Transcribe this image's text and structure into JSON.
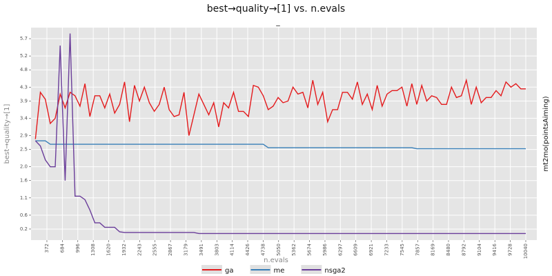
{
  "chart_data": {
    "type": "line",
    "title": "best→quality→[1] vs. n.evals",
    "subtitle": "_",
    "xlabel": "n.evals",
    "ylabel": "best→quality→[1]",
    "facet_label": "mt2mo(pointsAiming)",
    "grid": true,
    "legend": "bottom",
    "xlim": [
      52,
      10263
    ],
    "ylim": [
      -0.12,
      6.02
    ],
    "xticks": [
      372,
      684,
      996,
      1308,
      1620,
      1932,
      2243,
      2555,
      2867,
      3179,
      3491,
      3803,
      4114,
      4426,
      4738,
      5050,
      5362,
      5674,
      5986,
      6297,
      6609,
      6921,
      7233,
      7545,
      7857,
      8169,
      8480,
      8792,
      9104,
      9416,
      9728,
      10040
    ],
    "yticks": [
      0.2,
      0.6,
      1.1,
      1.6,
      {
        "value": 2,
        "label": "2.0"
      },
      2.5,
      2.9,
      3.4,
      3.9,
      4.3,
      4.8,
      5.2,
      5.7
    ],
    "x": [
      140,
      240,
      340,
      440,
      540,
      640,
      740,
      840,
      940,
      1040,
      1140,
      1240,
      1340,
      1440,
      1540,
      1640,
      1740,
      1840,
      1940,
      2040,
      2140,
      2240,
      2340,
      2440,
      2540,
      2640,
      2740,
      2840,
      2940,
      3040,
      3140,
      3240,
      3340,
      3440,
      3540,
      3640,
      3740,
      3840,
      3940,
      4040,
      4140,
      4240,
      4340,
      4440,
      4540,
      4640,
      4740,
      4840,
      4940,
      5040,
      5140,
      5240,
      5340,
      5440,
      5540,
      5640,
      5740,
      5840,
      5940,
      6040,
      6140,
      6240,
      6340,
      6440,
      6540,
      6640,
      6740,
      6840,
      6940,
      7040,
      7140,
      7240,
      7340,
      7440,
      7540,
      7640,
      7740,
      7840,
      7940,
      8040,
      8140,
      8240,
      8340,
      8440,
      8540,
      8640,
      8740,
      8840,
      8940,
      9040,
      9140,
      9240,
      9340,
      9440,
      9540,
      9640,
      9740,
      9840,
      9940,
      10040
    ],
    "series": [
      {
        "name": "ga",
        "color": "#e41a1c",
        "values": [
          2.8,
          4.15,
          3.95,
          3.25,
          3.4,
          4.1,
          3.7,
          4.15,
          4.05,
          3.75,
          4.4,
          3.45,
          4.05,
          4.05,
          3.7,
          4.1,
          3.55,
          3.8,
          4.45,
          3.3,
          4.35,
          3.9,
          4.3,
          3.85,
          3.6,
          3.8,
          4.3,
          3.65,
          3.45,
          3.5,
          4.15,
          2.9,
          3.5,
          4.1,
          3.8,
          3.5,
          3.85,
          3.15,
          3.85,
          3.7,
          4.15,
          3.6,
          3.6,
          3.45,
          4.35,
          4.3,
          4.05,
          3.65,
          3.75,
          4.0,
          3.85,
          3.9,
          4.3,
          4.1,
          4.15,
          3.7,
          4.5,
          3.8,
          4.15,
          3.3,
          3.65,
          3.65,
          4.15,
          4.15,
          3.95,
          4.45,
          3.8,
          4.1,
          3.65,
          4.35,
          3.75,
          4.1,
          4.2,
          4.2,
          4.3,
          3.75,
          4.4,
          3.8,
          4.35,
          3.9,
          4.05,
          4.0,
          3.8,
          3.8,
          4.3,
          4.0,
          4.05,
          4.5,
          3.8,
          4.3,
          3.85,
          4.0,
          4.0,
          4.2,
          4.05,
          4.45,
          4.3,
          4.4,
          4.25,
          4.25
        ]
      },
      {
        "name": "me",
        "color": "#377eb8",
        "values": [
          2.75,
          2.75,
          2.75,
          2.65,
          2.65,
          2.65,
          2.65,
          2.65,
          2.65,
          2.65,
          2.65,
          2.65,
          2.65,
          2.65,
          2.65,
          2.65,
          2.65,
          2.65,
          2.65,
          2.65,
          2.65,
          2.65,
          2.65,
          2.65,
          2.65,
          2.65,
          2.65,
          2.65,
          2.65,
          2.65,
          2.65,
          2.65,
          2.65,
          2.65,
          2.65,
          2.65,
          2.65,
          2.65,
          2.65,
          2.65,
          2.65,
          2.65,
          2.65,
          2.65,
          2.65,
          2.65,
          2.65,
          2.55,
          2.55,
          2.55,
          2.55,
          2.55,
          2.55,
          2.55,
          2.55,
          2.55,
          2.55,
          2.55,
          2.55,
          2.55,
          2.55,
          2.55,
          2.55,
          2.55,
          2.55,
          2.55,
          2.55,
          2.55,
          2.55,
          2.55,
          2.55,
          2.55,
          2.55,
          2.55,
          2.55,
          2.55,
          2.55,
          2.52,
          2.52,
          2.52,
          2.52,
          2.52,
          2.52,
          2.52,
          2.52,
          2.52,
          2.52,
          2.52,
          2.52,
          2.52,
          2.52,
          2.52,
          2.52,
          2.52,
          2.52,
          2.52,
          2.52,
          2.52,
          2.52,
          2.52
        ]
      },
      {
        "name": "nsga2",
        "color": "#6a3d9a",
        "values": [
          2.75,
          2.6,
          2.2,
          2.0,
          2.0,
          5.5,
          1.6,
          5.85,
          1.15,
          1.15,
          1.05,
          0.75,
          0.38,
          0.38,
          0.25,
          0.25,
          0.25,
          0.12,
          0.1,
          0.1,
          0.1,
          0.1,
          0.1,
          0.1,
          0.1,
          0.1,
          0.1,
          0.1,
          0.1,
          0.1,
          0.1,
          0.1,
          0.1,
          0.07,
          0.07,
          0.07,
          0.07,
          0.07,
          0.07,
          0.07,
          0.07,
          0.07,
          0.07,
          0.07,
          0.07,
          0.07,
          0.07,
          0.07,
          0.07,
          0.07,
          0.07,
          0.07,
          0.07,
          0.07,
          0.07,
          0.07,
          0.07,
          0.07,
          0.07,
          0.07,
          0.07,
          0.07,
          0.07,
          0.07,
          0.07,
          0.07,
          0.07,
          0.07,
          0.07,
          0.07,
          0.07,
          0.07,
          0.07,
          0.07,
          0.07,
          0.07,
          0.07,
          0.07,
          0.07,
          0.07,
          0.07,
          0.07,
          0.07,
          0.07,
          0.07,
          0.07,
          0.07,
          0.07,
          0.07,
          0.07,
          0.07,
          0.07,
          0.07,
          0.07,
          0.07,
          0.07,
          0.07,
          0.07,
          0.07,
          0.07
        ]
      }
    ]
  }
}
